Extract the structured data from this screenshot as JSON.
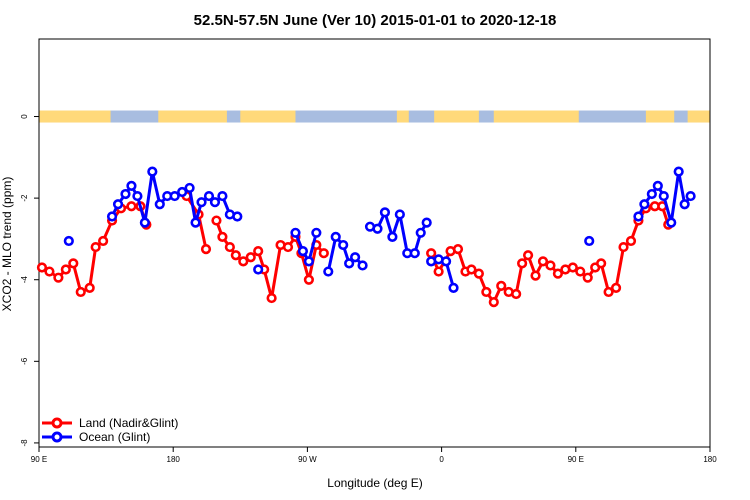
{
  "chart_data": {
    "type": "line",
    "title": "52.5N-57.5N June (Ver 10)   2015-01-01 to 2020-12-18",
    "xlabel": "Longitude (deg E)",
    "ylabel": "XCO2 - MLO trend (ppm)",
    "x_ticks": [
      {
        "value": 90,
        "label": "90 E"
      },
      {
        "value": 180,
        "label": "180"
      },
      {
        "value": 270,
        "label": "90 W"
      },
      {
        "value": 360,
        "label": "0"
      },
      {
        "value": 450,
        "label": "90 E"
      },
      {
        "value": 540,
        "label": "180"
      }
    ],
    "y_ticks": [
      {
        "value": -8,
        "label": "-8"
      },
      {
        "value": -6,
        "label": "-6"
      },
      {
        "value": -4,
        "label": "-4"
      },
      {
        "value": -2,
        "label": "-2"
      },
      {
        "value": 0,
        "label": "0"
      }
    ],
    "xlim": [
      90,
      540
    ],
    "ylim": [
      -8.1,
      1.9
    ],
    "grid": false,
    "legend_position": "bottom-left",
    "land_mask_strip": {
      "y_center": 0,
      "land_color": "#ffd97a",
      "ocean_color": "#a8bde0"
    },
    "series": [
      {
        "name": "Land (Nadir&Glint)",
        "color": "#ff0000",
        "segments": [
          [
            [
              92,
              -3.7
            ],
            [
              97,
              -3.8
            ],
            [
              103,
              -3.95
            ],
            [
              108,
              -3.75
            ],
            [
              113,
              -3.6
            ],
            [
              118,
              -4.3
            ],
            [
              124,
              -4.2
            ],
            [
              128,
              -3.2
            ],
            [
              133,
              -3.05
            ],
            [
              139,
              -2.55
            ],
            [
              145,
              -2.25
            ],
            [
              152,
              -2.2
            ],
            [
              158,
              -2.2
            ],
            [
              162,
              -2.65
            ]
          ],
          [
            [
              189,
              -1.95
            ],
            [
              197,
              -2.4
            ],
            [
              202,
              -3.25
            ]
          ],
          [
            [
              209,
              -2.55
            ],
            [
              213,
              -2.95
            ],
            [
              218,
              -3.2
            ],
            [
              222,
              -3.4
            ],
            [
              227,
              -3.55
            ],
            [
              232,
              -3.45
            ],
            [
              237,
              -3.3
            ],
            [
              241,
              -3.75
            ],
            [
              246,
              -4.45
            ],
            [
              252,
              -3.15
            ],
            [
              257,
              -3.2
            ],
            [
              262,
              -2.95
            ],
            [
              266,
              -3.35
            ],
            [
              271,
              -4.0
            ],
            [
              276,
              -3.15
            ],
            [
              281,
              -3.35
            ]
          ],
          [
            [
              353,
              -3.35
            ],
            [
              358,
              -3.8
            ],
            [
              366,
              -3.3
            ],
            [
              371,
              -3.25
            ],
            [
              376,
              -3.8
            ],
            [
              380,
              -3.75
            ],
            [
              385,
              -3.85
            ],
            [
              390,
              -4.3
            ],
            [
              395,
              -4.55
            ],
            [
              400,
              -4.15
            ],
            [
              405,
              -4.3
            ],
            [
              410,
              -4.35
            ],
            [
              414,
              -3.6
            ],
            [
              418,
              -3.4
            ],
            [
              423,
              -3.9
            ],
            [
              428,
              -3.55
            ],
            [
              433,
              -3.65
            ],
            [
              438,
              -3.85
            ],
            [
              443,
              -3.75
            ],
            [
              448,
              -3.7
            ],
            [
              453,
              -3.8
            ],
            [
              458,
              -3.95
            ],
            [
              463,
              -3.7
            ],
            [
              467,
              -3.6
            ],
            [
              472,
              -4.3
            ],
            [
              477,
              -4.2
            ],
            [
              482,
              -3.2
            ],
            [
              487,
              -3.05
            ],
            [
              492,
              -2.55
            ],
            [
              497,
              -2.25
            ],
            [
              503,
              -2.2
            ],
            [
              508,
              -2.2
            ],
            [
              512,
              -2.65
            ]
          ]
        ]
      },
      {
        "name": "Ocean (Glint)",
        "color": "#0000ff",
        "segments": [
          [
            [
              110,
              -3.05
            ]
          ],
          [
            [
              139,
              -2.45
            ],
            [
              143,
              -2.15
            ],
            [
              148,
              -1.9
            ],
            [
              152,
              -1.7
            ],
            [
              156,
              -1.95
            ],
            [
              161,
              -2.6
            ],
            [
              166,
              -1.35
            ],
            [
              171,
              -2.15
            ],
            [
              176,
              -1.95
            ],
            [
              181,
              -1.95
            ],
            [
              186,
              -1.85
            ],
            [
              191,
              -1.75
            ],
            [
              195,
              -2.6
            ],
            [
              199,
              -2.1
            ],
            [
              204,
              -1.95
            ],
            [
              208,
              -2.1
            ],
            [
              213,
              -1.95
            ],
            [
              218,
              -2.4
            ],
            [
              223,
              -2.45
            ]
          ],
          [
            [
              237,
              -3.75
            ]
          ],
          [
            [
              262,
              -2.85
            ],
            [
              267,
              -3.3
            ],
            [
              271,
              -3.55
            ],
            [
              276,
              -2.85
            ]
          ],
          [
            [
              284,
              -3.8
            ],
            [
              289,
              -2.95
            ],
            [
              294,
              -3.15
            ],
            [
              298,
              -3.6
            ],
            [
              302,
              -3.45
            ],
            [
              307,
              -3.65
            ]
          ],
          [
            [
              312,
              -2.7
            ],
            [
              317,
              -2.75
            ],
            [
              322,
              -2.35
            ],
            [
              327,
              -2.95
            ],
            [
              332,
              -2.4
            ],
            [
              337,
              -3.35
            ],
            [
              342,
              -3.35
            ],
            [
              346,
              -2.85
            ],
            [
              350,
              -2.6
            ]
          ],
          [
            [
              353,
              -3.55
            ],
            [
              358,
              -3.5
            ],
            [
              363,
              -3.55
            ],
            [
              368,
              -4.2
            ]
          ],
          [
            [
              459,
              -3.05
            ]
          ],
          [
            [
              492,
              -2.45
            ],
            [
              496,
              -2.15
            ],
            [
              501,
              -1.9
            ],
            [
              505,
              -1.7
            ],
            [
              509,
              -1.95
            ],
            [
              514,
              -2.6
            ],
            [
              519,
              -1.35
            ],
            [
              523,
              -2.15
            ],
            [
              527,
              -1.95
            ]
          ]
        ]
      }
    ]
  }
}
